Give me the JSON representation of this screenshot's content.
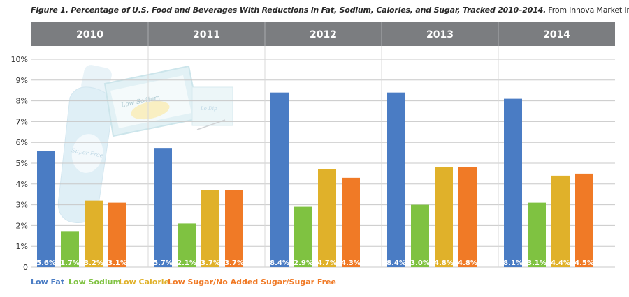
{
  "caption": {
    "figure_label": "Figure 1. Percentage of U.S. Food and Beverages With Reductions in Fat, Sodium, Calories, and Sugar, Tracked 2010–2014.",
    "source": "From Innova Market Insights"
  },
  "decoration": {
    "bottle_label": "Super Free",
    "box_label": "Low Sodium",
    "small_box_label": "Lo Dip"
  },
  "colors": {
    "low_fat": "#4a7cc4",
    "low_sodium": "#7fc241",
    "low_calorie": "#e0b12a",
    "low_sugar": "#f07a26",
    "header_bg": "#7b7d80",
    "grid": "#c8c8c8"
  },
  "chart_data": {
    "type": "bar",
    "categories": [
      "2010",
      "2011",
      "2012",
      "2013",
      "2014"
    ],
    "series": [
      {
        "name": "Low Fat",
        "values": [
          5.6,
          5.7,
          8.4,
          8.4,
          8.1
        ],
        "labels": [
          "5.6%",
          "5.7%",
          "8.4%",
          "8.4%",
          "8.1%"
        ]
      },
      {
        "name": "Low Sodium",
        "values": [
          1.7,
          2.1,
          2.9,
          3.0,
          3.1
        ],
        "labels": [
          "1.7%",
          "2.1%",
          "2.9%",
          "3.0%",
          "3.1%"
        ]
      },
      {
        "name": "Low Calorie",
        "values": [
          3.2,
          3.7,
          4.7,
          4.8,
          4.4
        ],
        "labels": [
          "3.2%",
          "3.7%",
          "4.7%",
          "4.8%",
          "4.4%"
        ]
      },
      {
        "name": "Low Sugar/No Added Sugar/Sugar Free",
        "values": [
          3.1,
          3.7,
          4.3,
          4.8,
          4.5
        ],
        "labels": [
          "3.1%",
          "3.7%",
          "4.3%",
          "4.8%",
          "4.5%"
        ]
      }
    ],
    "yticks": [
      "0",
      "1%",
      "2%",
      "3%",
      "4%",
      "5%",
      "6%",
      "7%",
      "8%",
      "9%",
      "10%"
    ],
    "ylim": [
      0,
      10
    ],
    "grid": true,
    "legend_position": "bottom-left"
  }
}
